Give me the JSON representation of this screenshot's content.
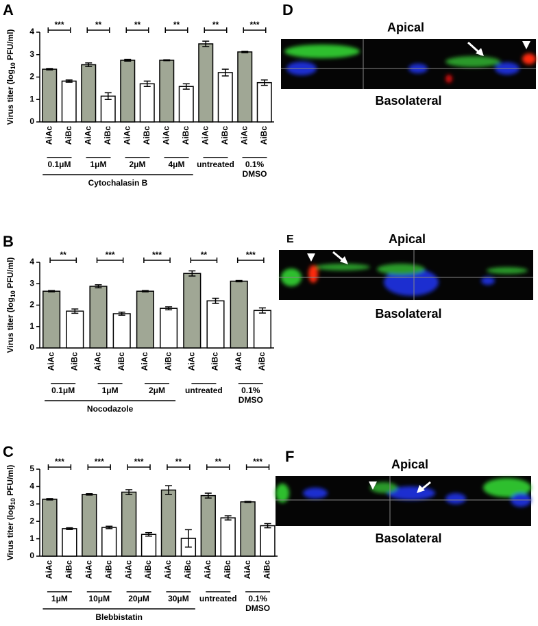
{
  "chart_data": [
    {
      "type": "bar",
      "panel": "A",
      "ylabel": [
        "Virus titer (log",
        "10",
        " PFU/ml)"
      ],
      "categories": [
        "AiAc",
        "AiBc",
        "AiAc",
        "AiBc",
        "AiAc",
        "AiBc",
        "AiAc",
        "AiBc",
        "AiAc",
        "AiBc",
        "AiAc",
        "AiBc"
      ],
      "values": [
        2.35,
        1.82,
        2.55,
        1.15,
        2.75,
        1.7,
        2.75,
        1.58,
        3.48,
        2.2,
        3.12,
        1.75
      ],
      "errors": [
        0.03,
        0.05,
        0.08,
        0.15,
        0.04,
        0.12,
        0.02,
        0.12,
        0.12,
        0.15,
        0.03,
        0.12
      ],
      "colors": [
        "#a0a795",
        "#ffffff",
        "#a0a795",
        "#ffffff",
        "#a0a795",
        "#ffffff",
        "#a0a795",
        "#ffffff",
        "#a0a795",
        "#ffffff",
        "#a0a795",
        "#ffffff"
      ],
      "ylim": [
        0,
        4
      ],
      "yticks": [
        0,
        1,
        2,
        3,
        4
      ],
      "groups": [
        {
          "label": [
            "0.1μM"
          ],
          "stars": "***"
        },
        {
          "label": [
            "1μM"
          ],
          "stars": "**"
        },
        {
          "label": [
            "2μM"
          ],
          "stars": "**"
        },
        {
          "label": [
            "4μM"
          ],
          "stars": "**"
        },
        {
          "label": [
            "untreated"
          ],
          "stars": "**"
        },
        {
          "label": [
            "0.1%",
            "DMSO"
          ],
          "stars": "***"
        }
      ],
      "treatment": {
        "label": "Cytochalasin  B",
        "groups": [
          0,
          1,
          2,
          3
        ]
      }
    },
    {
      "type": "bar",
      "panel": "B",
      "ylabel": [
        "Virus titer (log",
        "10",
        " PFU/ml)"
      ],
      "categories": [
        "AiAc",
        "AiBc",
        "AiAc",
        "AiBc",
        "AiAc",
        "AiBc",
        "AiAc",
        "AiBc",
        "AiAc",
        "AiBc"
      ],
      "values": [
        2.65,
        1.72,
        2.88,
        1.6,
        2.65,
        1.85,
        3.48,
        2.2,
        3.12,
        1.75
      ],
      "errors": [
        0.03,
        0.1,
        0.07,
        0.07,
        0.03,
        0.07,
        0.12,
        0.12,
        0.03,
        0.12
      ],
      "colors": [
        "#a0a795",
        "#ffffff",
        "#a0a795",
        "#ffffff",
        "#a0a795",
        "#ffffff",
        "#a0a795",
        "#ffffff",
        "#a0a795",
        "#ffffff"
      ],
      "ylim": [
        0,
        4
      ],
      "yticks": [
        0,
        1,
        2,
        3,
        4
      ],
      "groups": [
        {
          "label": [
            "0.1μM"
          ],
          "stars": "**"
        },
        {
          "label": [
            "1μM"
          ],
          "stars": "***"
        },
        {
          "label": [
            "2μM"
          ],
          "stars": "***"
        },
        {
          "label": [
            "untreated"
          ],
          "stars": "**"
        },
        {
          "label": [
            "0.1%",
            "DMSO"
          ],
          "stars": "***"
        }
      ],
      "treatment": {
        "label": "Nocodazole",
        "groups": [
          0,
          1,
          2
        ]
      }
    },
    {
      "type": "bar",
      "panel": "C",
      "ylabel": [
        "Virus titer (log",
        "10",
        " PFU/ml)"
      ],
      "categories": [
        "AiAc",
        "AiBc",
        "AiAc",
        "AiBc",
        "AiAc",
        "AiBc",
        "AiAc",
        "AiBc",
        "AiAc",
        "AiBc",
        "AiAc",
        "AiBc"
      ],
      "values": [
        3.27,
        1.58,
        3.55,
        1.65,
        3.68,
        1.25,
        3.8,
        1.02,
        3.48,
        2.2,
        3.12,
        1.75
      ],
      "errors": [
        0.04,
        0.05,
        0.04,
        0.07,
        0.14,
        0.1,
        0.25,
        0.5,
        0.14,
        0.12,
        0.03,
        0.12
      ],
      "colors": [
        "#a0a795",
        "#ffffff",
        "#a0a795",
        "#ffffff",
        "#a0a795",
        "#ffffff",
        "#a0a795",
        "#ffffff",
        "#a0a795",
        "#ffffff",
        "#a0a795",
        "#ffffff"
      ],
      "ylim": [
        0,
        5
      ],
      "yticks": [
        0,
        1,
        2,
        3,
        4,
        5
      ],
      "groups": [
        {
          "label": [
            "1μM"
          ],
          "stars": "***"
        },
        {
          "label": [
            "10μM"
          ],
          "stars": "***"
        },
        {
          "label": [
            "20μM"
          ],
          "stars": "***"
        },
        {
          "label": [
            "30μM"
          ],
          "stars": "**"
        },
        {
          "label": [
            "untreated"
          ],
          "stars": "**"
        },
        {
          "label": [
            "0.1%",
            "DMSO"
          ],
          "stars": "***"
        }
      ],
      "treatment": {
        "label": "Blebbistatin",
        "groups": [
          0,
          1,
          2,
          3
        ]
      }
    }
  ],
  "images": [
    {
      "panel": "D",
      "top": "Apical",
      "bottom": "Basolateral"
    },
    {
      "panel": "E",
      "top": "Apical",
      "bottom": "Basolateral"
    },
    {
      "panel": "F",
      "top": "Apical",
      "bottom": "Basolateral"
    }
  ]
}
